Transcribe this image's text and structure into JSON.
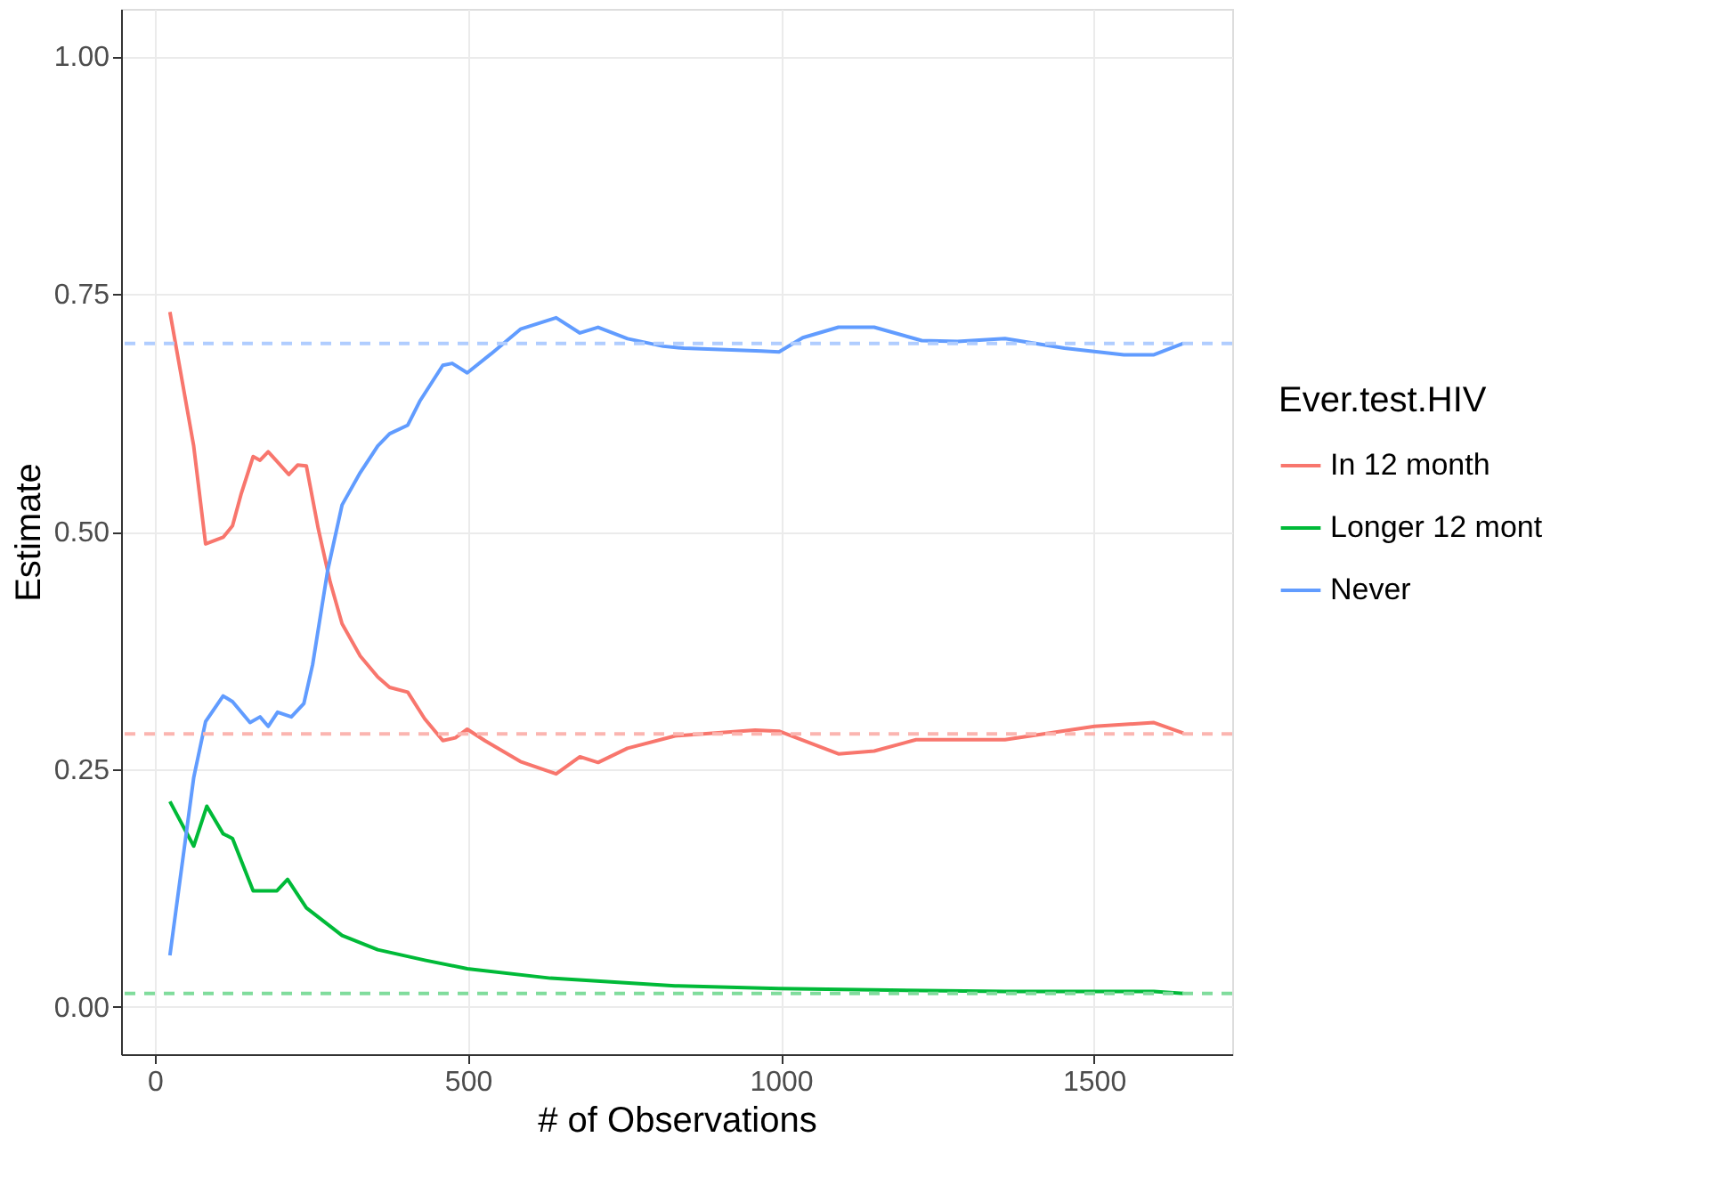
{
  "chart_data": {
    "type": "line",
    "xlabel": "# of Observations",
    "ylabel": "Estimate",
    "legend_title": "Ever.test.HIV",
    "legend": "right",
    "grid": true,
    "line_style": "solid",
    "marker": "none",
    "xlim": [
      -54,
      1721
    ],
    "xticks": [
      0,
      500,
      1000,
      1500
    ],
    "ylim": [
      -0.05,
      1.05
    ],
    "yticks": [
      {
        "value": 0,
        "label": "0.00"
      },
      {
        "value": 0.25,
        "label": "0.25"
      },
      {
        "value": 0.5,
        "label": "0.50"
      },
      {
        "value": 0.75,
        "label": "0.75"
      },
      {
        "value": 1,
        "label": "1.00"
      }
    ],
    "series": [
      {
        "name": "In 12 month",
        "color": "#f8766d",
        "x": [
          24,
          62,
          81,
          109,
          124,
          138,
          157,
          168,
          181,
          195,
          214,
          228,
          242,
          261,
          280,
          299,
          328,
          356,
          375,
          404,
          431,
          460,
          480,
          499,
          527,
          584,
          641,
          679,
          708,
          755,
          831,
          959,
          997,
          1092,
          1149,
          1216,
          1358,
          1501,
          1596,
          1643
        ],
        "values": [
          0.731,
          0.59,
          0.487,
          0.494,
          0.506,
          0.54,
          0.579,
          0.575,
          0.584,
          0.574,
          0.56,
          0.57,
          0.569,
          0.503,
          0.447,
          0.403,
          0.369,
          0.347,
          0.336,
          0.331,
          0.303,
          0.28,
          0.283,
          0.292,
          0.28,
          0.258,
          0.245,
          0.263,
          0.257,
          0.272,
          0.285,
          0.291,
          0.29,
          0.266,
          0.269,
          0.281,
          0.281,
          0.295,
          0.299,
          0.288
        ]
      },
      {
        "name": "Longer 12 mont",
        "color": "#00ba38",
        "x": [
          24,
          62,
          83,
          109,
          124,
          157,
          195,
          212,
          242,
          299,
          356,
          431,
          499,
          632,
          831,
          997,
          1358,
          1596,
          1643
        ],
        "values": [
          0.216,
          0.169,
          0.211,
          0.182,
          0.177,
          0.122,
          0.122,
          0.134,
          0.104,
          0.075,
          0.06,
          0.049,
          0.04,
          0.03,
          0.022,
          0.019,
          0.016,
          0.016,
          0.014
        ]
      },
      {
        "name": "Never",
        "color": "#619cff",
        "x": [
          24,
          62,
          81,
          109,
          124,
          152,
          168,
          181,
          196,
          218,
          238,
          252,
          276,
          299,
          328,
          356,
          375,
          404,
          423,
          460,
          475,
          499,
          537,
          584,
          641,
          679,
          708,
          755,
          812,
          845,
          969,
          997,
          1035,
          1092,
          1149,
          1225,
          1282,
          1358,
          1453,
          1548,
          1596,
          1643
        ],
        "values": [
          0.054,
          0.241,
          0.3,
          0.327,
          0.321,
          0.299,
          0.305,
          0.295,
          0.31,
          0.305,
          0.319,
          0.36,
          0.459,
          0.528,
          0.562,
          0.59,
          0.603,
          0.612,
          0.637,
          0.675,
          0.677,
          0.667,
          0.687,
          0.713,
          0.725,
          0.709,
          0.715,
          0.703,
          0.695,
          0.693,
          0.69,
          0.689,
          0.704,
          0.715,
          0.715,
          0.701,
          0.7,
          0.703,
          0.693,
          0.686,
          0.686,
          0.698
        ]
      }
    ],
    "ref_lines": [
      {
        "axis": "y",
        "value": 0.287,
        "color": "#fbb5b0",
        "line_style": "dashed"
      },
      {
        "axis": "y",
        "value": 0.014,
        "color": "#80dc9c",
        "line_style": "dashed"
      },
      {
        "axis": "y",
        "value": 0.698,
        "color": "#b0cdff",
        "line_style": "dashed"
      }
    ]
  }
}
